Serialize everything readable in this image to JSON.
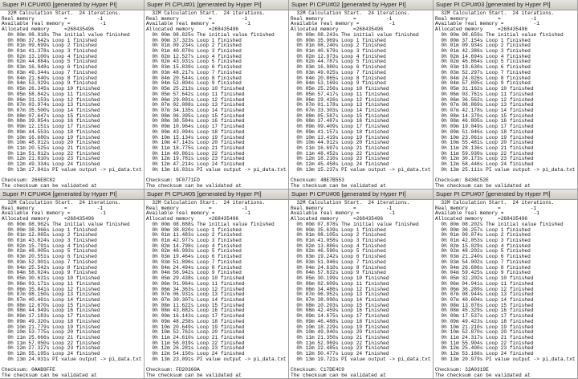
{
  "colors": {
    "titlebar": "#d4d0c8",
    "background": "#ffffff",
    "text": "#111111"
  },
  "header_lines": [
    "  32M Calculation Start.  24 iterations.",
    "Real memory          =          -1",
    "Available real memory =          -1",
    "Allocated memory     =268435496"
  ],
  "validated_text": "The checksum can be validated at",
  "windows": [
    {
      "title": "Super PI CPU#00 [generated by Hyper PI]",
      "checksum": "Checksum: 266E8C82",
      "lines": [
        "  0h 00m 08.918s The initial value finished",
        "  0h 00m 37.642s Loop 1 finished",
        "  0h 01m 09.699s Loop 2 finished",
        "  0h 01m 41.378s Loop 3 finished",
        "  0h 02m 13.100s Loop 4 finished",
        "  0h 02m 44.884s Loop 5 finished",
        "  0h 03m 16.948s Loop 6 finished",
        "  0h 03m 49.344s Loop 7 finished",
        "  0h 04m 21.640s Loop 8 finished",
        "  0h 04m 53.929s Loop 9 finished",
        "  0h 05m 26.345s Loop 10 finished",
        "  0h 05m 58.842s Loop 11 finished",
        "  0h 06m 31.153s Loop 12 finished",
        "  0h 07m 03.974s Loop 13 finished",
        "  0h 07m 35.500s Loop 14 finished",
        "  0h 08m 07.647s Loop 15 finished",
        "  0h 08m 39.854s Loop 16 finished",
        "  0h 09m 12.151s Loop 17 finished",
        "  0h 09m 44.553s Loop 18 finished",
        "  0h 10m 16.680s Loop 19 finished",
        "  0h 10m 48.912s Loop 20 finished",
        "  0h 11m 20.525s Loop 21 finished",
        "  0h 11m 51.812s Loop 22 finished",
        "  0h 12m 21.810s Loop 23 finished",
        "  0h 12m 49.334s Loop 24 finished",
        "  0h 13m 17.841s PI value output -> pi_data.txt"
      ]
    },
    {
      "title": "Super PI CPU#01 [generated by Hyper PI]",
      "checksum": "Checksum: 9F0771FD",
      "lines": [
        "  0h 00m 08.825s The initial value finished",
        "  0h 00m 37.323s Loop 1 finished",
        "  0h 01m 09.234s Loop 2 finished",
        "  0h 01m 40.870s Loop 3 finished",
        "  0h 02m 12.527s Loop 4 finished",
        "  0h 02m 43.931s Loop 5 finished",
        "  0h 03m 15.839s Loop 6 finished",
        "  0h 03m 48.217s Loop 7 finished",
        "  0h 04m 20.544s Loop 8 finished",
        "  0h 04m 52.804s Loop 9 finished",
        "  0h 05m 25.213s Loop 10 finished",
        "  0h 05m 57.642s Loop 11 finished",
        "  0h 06m 29.891s Loop 12 finished",
        "  0h 07m 02.088s Loop 13 finished",
        "  0h 07m 34.135s Loop 14 finished",
        "  0h 08m 06.395s Loop 15 finished",
        "  0h 08m 38.584s Loop 16 finished",
        "  0h 09m 10.964s Loop 17 finished",
        "  0h 09m 43.094s Loop 18 finished",
        "  0h 10m 15.134s Loop 19 finished",
        "  0h 10m 47.143s Loop 20 finished",
        "  0h 11m 18.775s Loop 21 finished",
        "  0h 11m 49.861s Loop 22 finished",
        "  0h 12m 19.781s Loop 23 finished",
        "  0h 12m 47.214s Loop 24 finished",
        "  0h 13m 16.031s PI value output -> pi_data.txt"
      ]
    },
    {
      "title": "Super PI CPU#02 [generated by Hyper PI]",
      "checksum": "Checksum: 4BE7B553",
      "lines": [
        "  0h 00m 08.243s The initial value finished",
        "  0h 00m 35.969s Loop 1 finished",
        "  0h 01m 08.240s Loop 2 finished",
        "  0h 01m 40.679s Loop 3 finished",
        "  0h 02m 12.973s Loop 4 finished",
        "  0h 02m 44.787s Loop 5 finished",
        "  0h 03m 16.980s Loop 6 finished",
        "  0h 03m 49.025s Loop 7 finished",
        "  0h 04m 20.865s Loop 8 finished",
        "  0h 04m 53.169s Loop 9 finished",
        "  0h 05m 25.256s Loop 10 finished",
        "  0h 05m 57.417s Loop 11 finished",
        "  0h 06m 29.426s Loop 12 finished",
        "  0h 07m 01.178s Loop 13 finished",
        "  0h 07m 33.303s Loop 14 finished",
        "  0h 08m 05.587s Loop 15 finished",
        "  0h 08m 37.487s Loop 16 finished",
        "  0h 09m 09.409s Loop 17 finished",
        "  0h 09m 41.157s Loop 18 finished",
        "  0h 10m 13.419s Loop 19 finished",
        "  0h 10m 44.912s Loop 20 finished",
        "  0h 11m 16.697s Loop 21 finished",
        "  0h 11m 48.452s Loop 22 finished",
        "  0h 12m 18.210s Loop 23 finished",
        "  0h 12m 45.458s Loop 24 finished",
        "  0h 13m 15.237s PI value output -> pi_data.txt"
      ]
    },
    {
      "title": "Super PI CPU#03 [generated by Hyper PI]",
      "checksum": "Checksum: B436C52E",
      "lines": [
        "  0h 00m 08.659s The initial value finished",
        "  0h 00m 37.154s Loop 1 finished",
        "  0h 01m 09.934s Loop 2 finished",
        "  0h 01m 42.386s Loop 3 finished",
        "  0h 02m 14.694s Loop 4 finished",
        "  0h 02m 46.864s Loop 5 finished",
        "  0h 03m 19.630s Loop 6 finished",
        "  0h 03m 52.297s Loop 7 finished",
        "  0h 04m 24.026s Loop 8 finished",
        "  0h 04m 57.895s Loop 9 finished",
        "  0h 05m 31.162s Loop 10 finished",
        "  0h 06m 03.761s Loop 11 finished",
        "  0h 06m 36.562s Loop 12 finished",
        "  0h 07m 08.869s Loop 13 finished",
        "  0h 07m 42.178s Loop 14 finished",
        "  0h 08m 14.370s Loop 15 finished",
        "  0h 08m 46.805s Loop 16 finished",
        "  0h 09m 19.049s Loop 17 finished",
        "  0h 09m 51.046s Loop 18 finished",
        "  0h 10m 23.061s Loop 19 finished",
        "  0h 10m 55.481s Loop 20 finished",
        "  0h 11m 28.136s Loop 21 finished",
        "  0h 11m 59.930s Loop 22 finished",
        "  0h 12m 30.173s Loop 23 finished",
        "  0h 12m 58.446s Loop 24 finished",
        "  0h 13m 25.111s PI value output -> pi_data.txt"
      ]
    },
    {
      "title": "Super PI CPU#04 [generated by Hyper PI]",
      "checksum": "Checksum: 0AAB9FFE",
      "lines": [
        "  0h 00m 08.962s The initial value finished",
        "  0h 00m 38.966s Loop 1 finished",
        "  0h 01m 12.065s Loop 2 finished",
        "  0h 01m 43.824s Loop 3 finished",
        "  0h 02m 15.791s Loop 4 finished",
        "  0h 02m 48.005s Loop 5 finished",
        "  0h 03m 20.551s Loop 6 finished",
        "  0h 03m 52.901s Loop 7 finished",
        "  0h 04m 25.542s Loop 8 finished",
        "  0h 04m 58.024s Loop 9 finished",
        "  0h 05m 30.631s Loop 10 finished",
        "  0h 06m 03.171s Loop 11 finished",
        "  0h 06m 35.841s Loop 12 finished",
        "  0h 07m 08.150s Loop 13 finished",
        "  0h 07m 40.461s Loop 14 finished",
        "  0h 08m 12.670s Loop 15 finished",
        "  0h 08m 44.949s Loop 16 finished",
        "  0h 09m 17.183s Loop 17 finished",
        "  0h 09m 49.320s Loop 18 finished",
        "  0h 10m 21.779s Loop 19 finished",
        "  0h 10m 53.775s Loop 20 finished",
        "  0h 11m 25.666s Loop 21 finished",
        "  0h 11m 57.050s Loop 22 finished",
        "  0h 12m 27.327s Loop 23 finished",
        "  0h 12m 55.195s Loop 24 finished",
        "  0h 13m 24.031s PI value output -> pi_data.txt"
      ]
    },
    {
      "title": "Super PI CPU#05 [generated by Hyper PI]",
      "checksum": "Checksum: FD20369A",
      "lines": [
        "  0h 00m 08.888s The initial value finished",
        "  0h 00m 38.820s Loop 1 finished",
        "  0h 01m 11.483s Loop 2 finished",
        "  0h 01m 42.977s Loop 3 finished",
        "  0h 02m 14.798s Loop 4 finished",
        "  0h 02m 46.993s Loop 5 finished",
        "  0h 03m 19.464s Loop 6 finished",
        "  0h 03m 51.896s Loop 7 finished",
        "  0h 04m 24.494s Loop 8 finished",
        "  0h 04m 56.942s Loop 9 finished",
        "  0h 05m 29.438s Loop 10 finished",
        "  0h 06m 01.964s Loop 11 finished",
        "  0h 06m 34.363s Loop 12 finished",
        "  0h 07m 06.931s Loop 13 finished",
        "  0h 07m 39.307s Loop 14 finished",
        "  0h 08m 11.622s Loop 15 finished",
        "  0h 08m 43.882s Loop 16 finished",
        "  0h 09m 16.143s Loop 17 finished",
        "  0h 09m 48.258s Loop 18 finished",
        "  0h 10m 20.649s Loop 19 finished",
        "  0h 10m 52.762s Loop 20 finished",
        "  0h 11m 24.610s Loop 21 finished",
        "  0h 11m 56.019s Loop 22 finished",
        "  0h 12m 26.281s Loop 23 finished",
        "  0h 12m 54.150s Loop 24 finished",
        "  0h 13m 23.091s PI value output -> pi_data.txt"
      ]
    },
    {
      "title": "Super PI CPU#06 [generated by Hyper PI]",
      "checksum": "Checksum: C17DE4C9",
      "lines": [
        "  0h 00m 07.878s The initial value finished",
        "  0h 00m 35.639s Loop 1 finished",
        "  0h 01m 08.105s Loop 2 finished",
        "  0h 01m 41.058s Loop 3 finished",
        "  0h 02m 13.886s Loop 4 finished",
        "  0h 02m 46.590s Loop 5 finished",
        "  0h 03m 19.242s Loop 6 finished",
        "  0h 03m 51.946s Loop 7 finished",
        "  0h 04m 24.610s Loop 8 finished",
        "  0h 04m 57.632s Loop 9 finished",
        "  0h 05m 30.199s Loop 10 finished",
        "  0h 06m 02.609s Loop 11 finished",
        "  0h 06m 34.486s Loop 12 finished",
        "  0h 07m 06.952s Loop 13 finished",
        "  0h 07m 38.090s Loop 14 finished",
        "  0h 08m 10.203s Loop 15 finished",
        "  0h 08m 42.459s Loop 16 finished",
        "  0h 09m 14.675s Loop 17 finished",
        "  0h 09m 46.488s Loop 18 finished",
        "  0h 10m 18.229s Loop 19 finished",
        "  0h 10m 49.940s Loop 20 finished",
        "  0h 11m 21.350s Loop 21 finished",
        "  0h 11m 52.969s Loop 22 finished",
        "  0h 12m 22.485s Loop 23 finished",
        "  0h 12m 50.477s Loop 24 finished",
        "  0h 13m 19.721s PI value output -> pi_data.txt"
      ]
    },
    {
      "title": "Super PI CPU#07 [generated by Hyper PI]",
      "checksum": "Checksum: 32A0319E",
      "lines": [
        "  0h 00m 08.202s The initial value finished",
        "  0h 00m 36.257s Loop 1 finished",
        "  0h 01m 09.074s Loop 2 finished",
        "  0h 01m 42.053s Loop 3 finished",
        "  0h 02m 15.029s Loop 4 finished",
        "  0h 02m 48.202s Loop 5 finished",
        "  0h 03m 21.240s Loop 6 finished",
        "  0h 03m 54.002s Loop 7 finished",
        "  0h 04m 26.686s Loop 8 finished",
        "  0h 04m 59.425s Loop 9 finished",
        "  0h 05m 32.202s Loop 10 finished",
        "  0h 06m 04.941s Loop 11 finished",
        "  0h 06m 36.289s Loop 12 finished",
        "  0h 07m 08.944s Loop 13 finished",
        "  0h 07m 40.604s Loop 14 finished",
        "  0h 08m 13.076s Loop 15 finished",
        "  0h 08m 45.329s Loop 16 finished",
        "  0h 09m 17.537s Loop 17 finished",
        "  0h 09m 49.423s Loop 18 finished",
        "  0h 10m 21.210s Loop 19 finished",
        "  0h 10m 52.870s Loop 20 finished",
        "  0h 11m 24.317s Loop 21 finished",
        "  0h 11m 55.904s Loop 22 finished",
        "  0h 12m 25.400s Loop 23 finished",
        "  0h 12m 53.166s Loop 24 finished",
        "  0h 13m 20.979s PI value output -> pi_data.txt"
      ]
    }
  ]
}
